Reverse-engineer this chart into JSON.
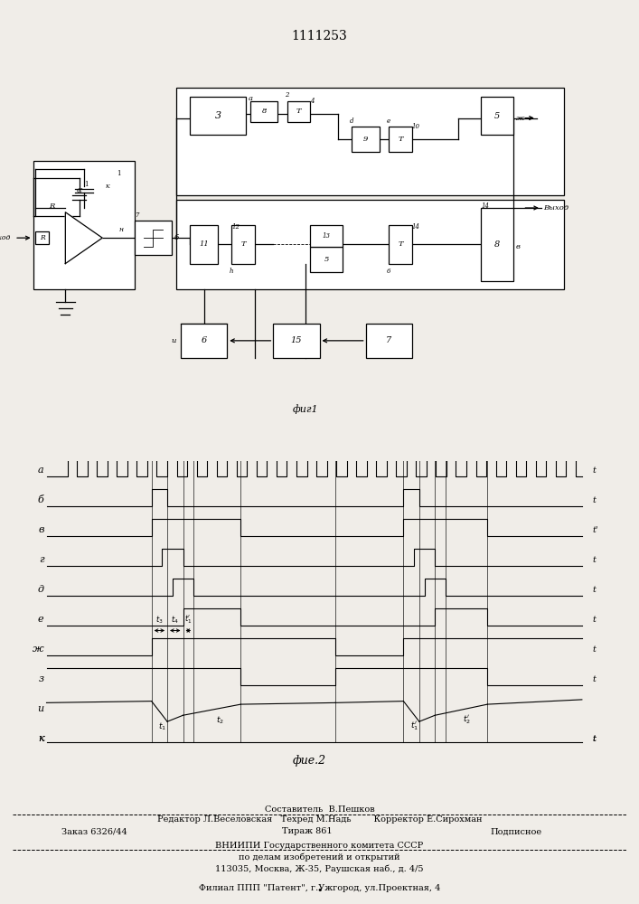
{
  "patent_number": "1111253",
  "bg_color": "#f0ede8",
  "fig1_caption": "фиг1",
  "fig2_caption": "фие.2",
  "bottom_text_1": "Составитель  В.Пешков",
  "bottom_text_2": "Редактор Л.Веселовская   Техред М.Надь        Корректор Е.Сирохман",
  "bottom_text_3a": "Заказ 6326/44",
  "bottom_text_3b": "Тираж 861",
  "bottom_text_3c": "Подписное",
  "bottom_text_4": "ВНИИПИ Государственного комитета СССР",
  "bottom_text_5": "по делам изобретений и открытий",
  "bottom_text_6": "113035, Москва, Ж-35, Раушская наб., д. 4/5",
  "bottom_text_7": "Филиал ППП \"Патент\", г.Ужгород, ул.Проектная, 4"
}
